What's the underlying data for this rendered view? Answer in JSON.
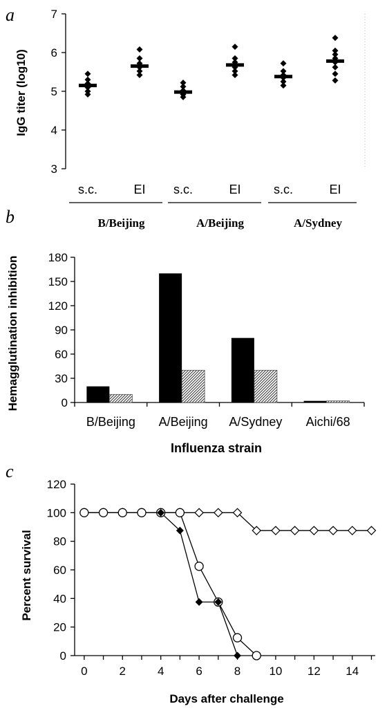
{
  "chart_data": [
    {
      "panel": "a",
      "type": "scatter",
      "ylabel": "IgG titer (log10)",
      "ylim": [
        3,
        7
      ],
      "yticks": [
        3,
        4,
        5,
        6,
        7
      ],
      "groups": [
        {
          "label": "B/Beijing",
          "subgroups": [
            {
              "label": "s.c.",
              "mean": 5.15,
              "points": [
                5.45,
                5.3,
                5.2,
                5.1,
                5.0,
                4.92
              ]
            },
            {
              "label": "EI",
              "mean": 5.65,
              "points": [
                6.08,
                5.85,
                5.72,
                5.62,
                5.52,
                5.42
              ]
            }
          ]
        },
        {
          "label": "A/Beijing",
          "subgroups": [
            {
              "label": "s.c.",
              "mean": 4.98,
              "points": [
                5.22,
                5.12,
                5.02,
                4.92,
                4.85
              ]
            },
            {
              "label": "EI",
              "mean": 5.68,
              "points": [
                6.15,
                5.85,
                5.75,
                5.62,
                5.52,
                5.42
              ]
            }
          ]
        },
        {
          "label": "A/Sydney",
          "subgroups": [
            {
              "label": "s.c.",
              "mean": 5.38,
              "points": [
                5.72,
                5.52,
                5.42,
                5.35,
                5.25,
                5.15
              ]
            },
            {
              "label": "EI",
              "mean": 5.78,
              "points": [
                6.38,
                6.05,
                5.95,
                5.85,
                5.75,
                5.62,
                5.45,
                5.28
              ]
            }
          ]
        }
      ]
    },
    {
      "panel": "b",
      "type": "bar",
      "xlabel": "Influenza strain",
      "ylabel": "Hemagglutination inhibition",
      "ylim": [
        0,
        180
      ],
      "yticks": [
        0,
        30,
        60,
        90,
        120,
        150,
        180
      ],
      "categories": [
        "B/Beijing",
        "A/Beijing",
        "A/Sydney",
        "Aichi/68"
      ],
      "series": [
        {
          "style": "solid",
          "color": "#000000",
          "values": [
            20,
            160,
            80,
            2
          ]
        },
        {
          "style": "hatched",
          "color": "#888888",
          "values": [
            10,
            40,
            40,
            2
          ]
        }
      ]
    },
    {
      "panel": "c",
      "type": "line",
      "xlabel": "Days after challenge",
      "ylabel": "Percent survival",
      "xlim": [
        -0.5,
        15.2
      ],
      "ylim": [
        0,
        120
      ],
      "xticks": [
        0,
        2,
        4,
        6,
        8,
        10,
        12,
        14
      ],
      "yticks": [
        0,
        20,
        40,
        60,
        80,
        100,
        120
      ],
      "series": [
        {
          "marker": "open-diamond",
          "x": [
            0,
            1,
            2,
            3,
            4,
            5,
            6,
            7,
            8,
            9,
            10,
            11,
            12,
            13,
            14,
            15
          ],
          "y": [
            100,
            100,
            100,
            100,
            100,
            100,
            100,
            100,
            100,
            87.5,
            87.5,
            87.5,
            87.5,
            87.5,
            87.5,
            87.5
          ]
        },
        {
          "marker": "open-circle",
          "x": [
            0,
            1,
            2,
            3,
            4,
            5,
            6,
            7,
            8,
            9
          ],
          "y": [
            100,
            100,
            100,
            100,
            100,
            100,
            62.5,
            37.5,
            12.5,
            0
          ]
        },
        {
          "marker": "filled-diamond",
          "x": [
            4,
            5,
            6,
            7,
            8
          ],
          "y": [
            100,
            87.5,
            37.5,
            37.5,
            0
          ]
        }
      ]
    }
  ]
}
